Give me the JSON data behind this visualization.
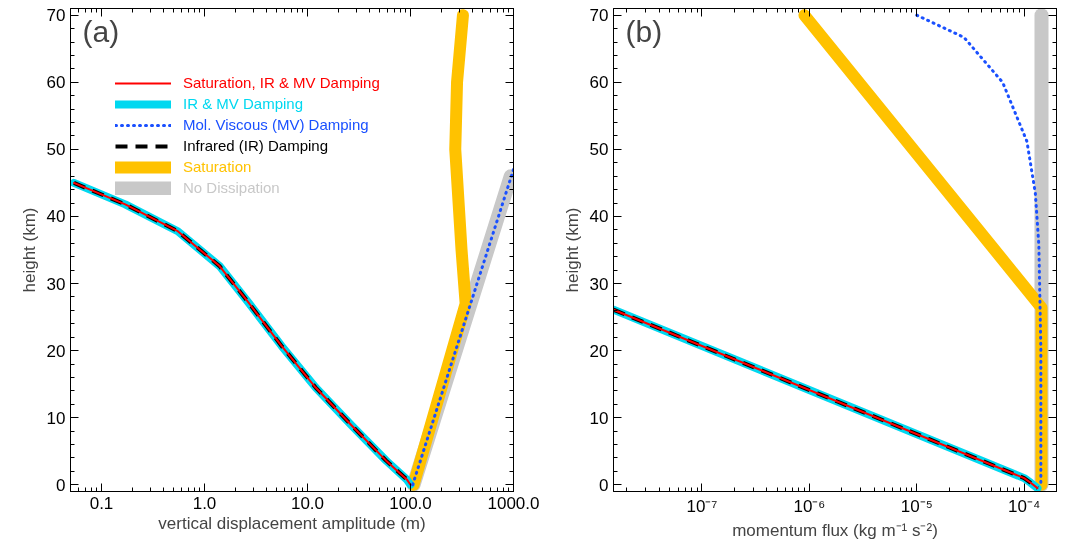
{
  "chart_data": [
    {
      "type": "line",
      "annotations": [
        "(a)"
      ],
      "xlabel": "vertical displacement amplitude (m)",
      "ylabel": "height (km)",
      "log": "x",
      "xlim": [
        0.05,
        1000
      ],
      "xticks": [
        {
          "value": 0.1,
          "label": "0.1"
        },
        {
          "value": 1,
          "label": "1.0"
        },
        {
          "value": 10,
          "label": "10.0"
        },
        {
          "value": 100,
          "label": "100.0"
        },
        {
          "value": 1000,
          "label": "1000.0"
        }
      ],
      "ylim": [
        -1,
        71
      ],
      "yticks": [
        0,
        10,
        20,
        30,
        40,
        50,
        60,
        70
      ],
      "grid": false,
      "legend": "top",
      "marker": "none",
      "series": [
        {
          "name": "Saturation, IR & MV Damping",
          "color": "#ff0000",
          "line_style": "solid",
          "x": [
            0.054,
            0.17,
            0.55,
            1.4,
            2.6,
            5.6,
            12,
            27,
            58,
            92,
            100
          ],
          "values": [
            45,
            41.8,
            37.8,
            32.6,
            27.4,
            20.7,
            14.5,
            8.8,
            3.6,
            0.8,
            0
          ]
        },
        {
          "name": "IR & MV Damping",
          "color": "#00d8f0",
          "line_style": "solid",
          "x": [
            0.054,
            0.17,
            0.55,
            1.4,
            2.6,
            5.6,
            12,
            27,
            58,
            92,
            100
          ],
          "values": [
            45,
            41.8,
            37.8,
            32.6,
            27.4,
            20.7,
            14.5,
            8.8,
            3.6,
            0.8,
            0
          ]
        },
        {
          "name": "Mol. Viscous (MV) Damping",
          "color": "#1a50ff",
          "line_style": "dotted",
          "x": [
            105,
            1000
          ],
          "values": [
            0,
            47
          ]
        },
        {
          "name": "Infrared (IR) Damping",
          "color": "#000000",
          "line_style": "dashed",
          "x": [
            0.054,
            0.17,
            0.55,
            1.4,
            2.6,
            5.6,
            12,
            27,
            58,
            92,
            100
          ],
          "values": [
            45,
            41.8,
            37.8,
            32.6,
            27.4,
            20.7,
            14.5,
            8.8,
            3.6,
            0.8,
            0
          ]
        },
        {
          "name": "Saturation",
          "color": "#ffc200",
          "line_style": "solid",
          "x": [
            107,
            343,
            313,
            272,
            283,
            323
          ],
          "values": [
            0,
            27,
            35,
            50,
            60,
            70
          ]
        },
        {
          "name": "No Dissipation",
          "color": "#c8c8c8",
          "line_style": "solid",
          "x": [
            107,
            940
          ],
          "values": [
            0,
            46
          ]
        }
      ]
    },
    {
      "type": "line",
      "annotations": [
        "(b)"
      ],
      "xlabel": "momentum flux (kg m⁻¹ s⁻²)",
      "ylabel": "height (km)",
      "log": "x",
      "xlim": [
        1.5e-08,
        0.0002
      ],
      "xticks": [
        {
          "value": 1e-07,
          "label": "10⁻⁷"
        },
        {
          "value": 1e-06,
          "label": "10⁻⁶"
        },
        {
          "value": 1e-05,
          "label": "10⁻⁵"
        },
        {
          "value": 0.0001,
          "label": "10⁻⁴"
        }
      ],
      "ylim": [
        -1,
        71
      ],
      "yticks": [
        0,
        10,
        20,
        30,
        40,
        50,
        60,
        70
      ],
      "grid": false,
      "legend": false,
      "marker": "none",
      "series": [
        {
          "color": "#ff0000",
          "line_style": "solid",
          "x": [
            1.5e-08,
            0.0001,
            0.000115,
            0.000133
          ],
          "values": [
            26.1,
            1.0,
            0.3,
            -0.5
          ]
        },
        {
          "color": "#00d8f0",
          "line_style": "solid",
          "x": [
            1.5e-08,
            0.0001,
            0.000115,
            0.000133
          ],
          "values": [
            26.1,
            1.0,
            0.3,
            -0.5
          ]
        },
        {
          "color": "#1a50ff",
          "line_style": "dotted",
          "x": [
            1e-05,
            2.75e-05,
            6.3e-05,
            0.000106,
            0.000127,
            0.000137,
            0.000143,
            0.000143
          ],
          "values": [
            70,
            66.7,
            60,
            51.2,
            43.5,
            35.7,
            20.2,
            0
          ]
        },
        {
          "color": "#000000",
          "line_style": "dashed",
          "x": [
            1.5e-08,
            0.0001,
            0.000115,
            0.000133
          ],
          "values": [
            26.1,
            1.0,
            0.3,
            -0.5
          ]
        },
        {
          "color": "#ffc200",
          "line_style": "solid",
          "x": [
            9e-07,
            0.000145,
            0.000145
          ],
          "values": [
            70,
            26.4,
            0
          ]
        },
        {
          "color": "#c8c8c8",
          "line_style": "solid",
          "x": [
            0.000145,
            0.000145
          ],
          "values": [
            0,
            70
          ]
        }
      ]
    }
  ]
}
